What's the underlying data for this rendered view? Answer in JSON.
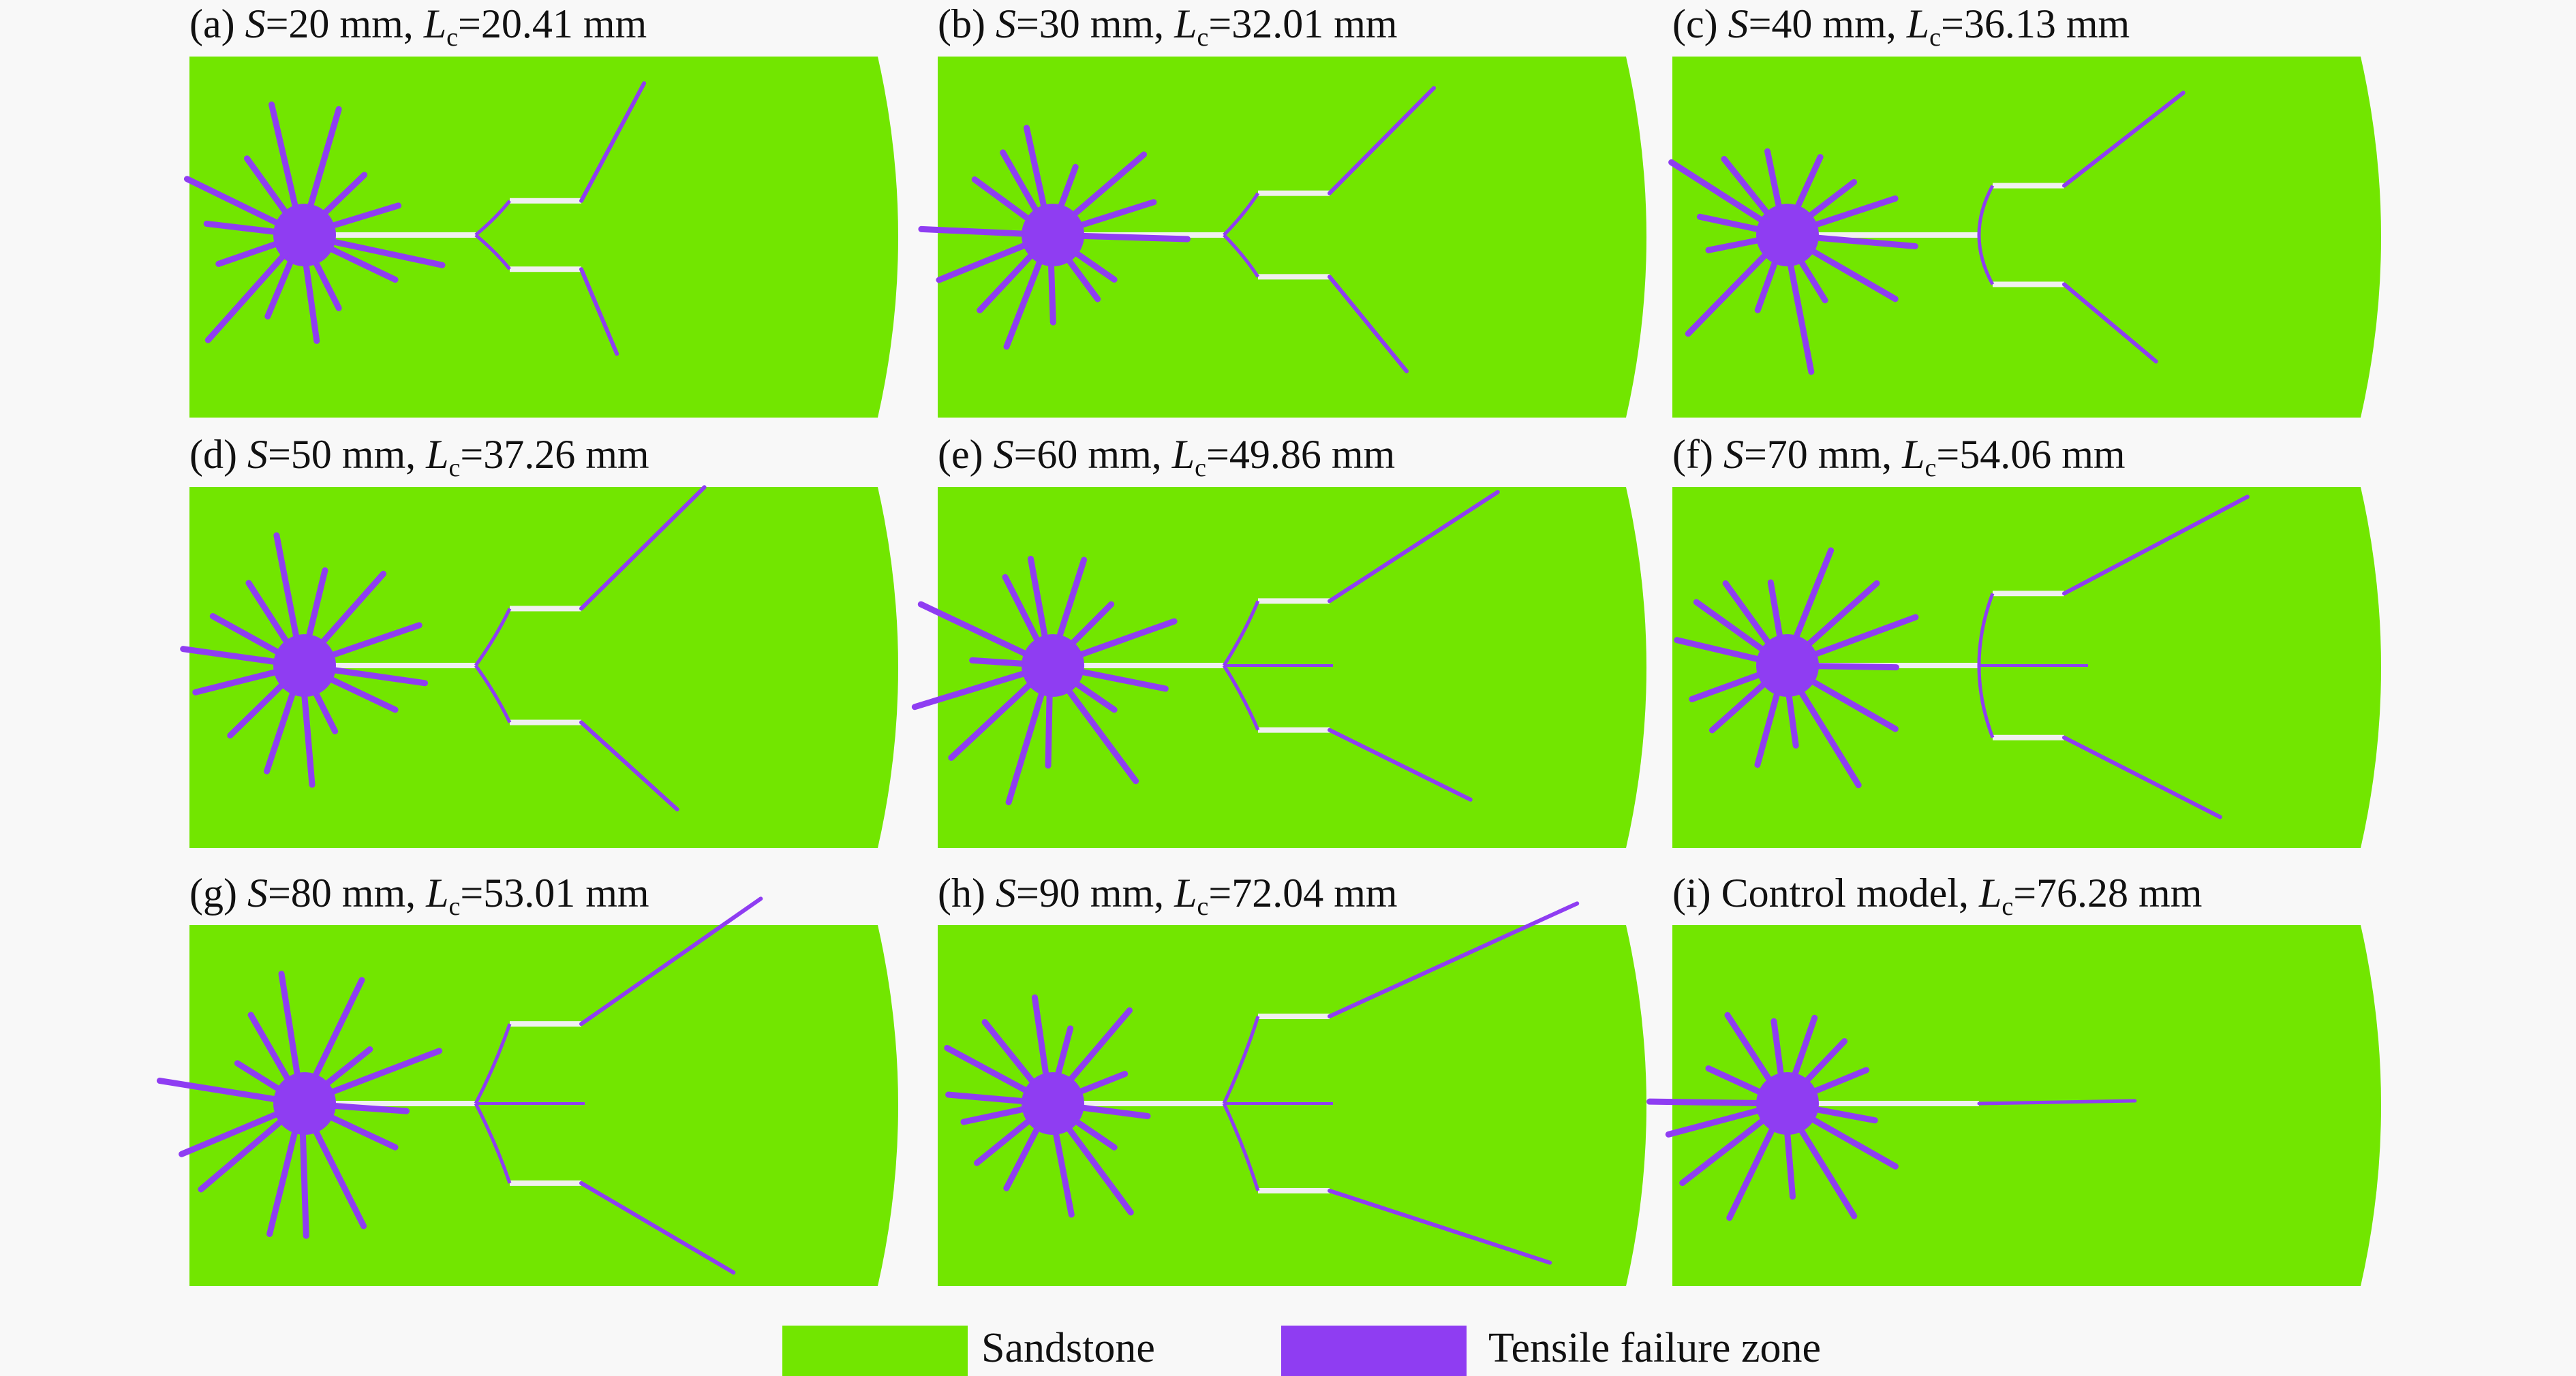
{
  "colors": {
    "sandstone": "#72e600",
    "tensile": "#8f3df2",
    "slot": "#f0f0f0",
    "background": "#f8f8f8"
  },
  "panels": [
    {
      "id": "a",
      "label": "(a) ",
      "s_prefix": "S",
      "s_value": "=20 mm, ",
      "lc_var": "L",
      "lc_sub": "c",
      "lc_value": "=20.41 mm",
      "spacing_mm": 20,
      "crack_length_mm": 20.41
    },
    {
      "id": "b",
      "label": "(b) ",
      "s_prefix": "S",
      "s_value": "=30 mm, ",
      "lc_var": "L",
      "lc_sub": "c",
      "lc_value": "=32.01 mm",
      "spacing_mm": 30,
      "crack_length_mm": 32.01
    },
    {
      "id": "c",
      "label": "(c) ",
      "s_prefix": "S",
      "s_value": "=40 mm, ",
      "lc_var": "L",
      "lc_sub": "c",
      "lc_value": "=36.13 mm",
      "spacing_mm": 40,
      "crack_length_mm": 36.13
    },
    {
      "id": "d",
      "label": "(d) ",
      "s_prefix": "S",
      "s_value": "=50 mm, ",
      "lc_var": "L",
      "lc_sub": "c",
      "lc_value": "=37.26 mm",
      "spacing_mm": 50,
      "crack_length_mm": 37.26
    },
    {
      "id": "e",
      "label": "(e) ",
      "s_prefix": "S",
      "s_value": "=60 mm, ",
      "lc_var": "L",
      "lc_sub": "c",
      "lc_value": "=49.86 mm",
      "spacing_mm": 60,
      "crack_length_mm": 49.86
    },
    {
      "id": "f",
      "label": "(f) ",
      "s_prefix": "S",
      "s_value": "=70 mm, ",
      "lc_var": "L",
      "lc_sub": "c",
      "lc_value": "=54.06 mm",
      "spacing_mm": 70,
      "crack_length_mm": 54.06
    },
    {
      "id": "g",
      "label": "(g) ",
      "s_prefix": "S",
      "s_value": "=80 mm, ",
      "lc_var": "L",
      "lc_sub": "c",
      "lc_value": "=53.01 mm",
      "spacing_mm": 80,
      "crack_length_mm": 53.01
    },
    {
      "id": "h",
      "label": "(h) ",
      "s_prefix": "S",
      "s_value": "=90 mm, ",
      "lc_var": "L",
      "lc_sub": "c",
      "lc_value": "=72.04 mm",
      "spacing_mm": 90,
      "crack_length_mm": 72.04
    },
    {
      "id": "i",
      "label": "(i) Control model, ",
      "s_prefix": "",
      "s_value": "",
      "lc_var": "L",
      "lc_sub": "c",
      "lc_value": "=76.28 mm",
      "spacing_mm": null,
      "crack_length_mm": 76.28
    }
  ],
  "legend": [
    {
      "label": "Sandstone",
      "color_key": "sandstone"
    },
    {
      "label": "Tensile failure zone",
      "color_key": "tensile"
    }
  ]
}
